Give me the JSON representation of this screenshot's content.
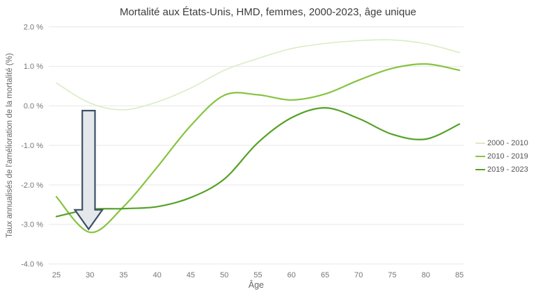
{
  "chart_data": {
    "type": "line",
    "title": "Mortalité aux États-Unis, HMD, femmes, 2000-2023, âge unique",
    "xlabel": "Âge",
    "ylabel": "Taux annualisés de l'amélioration de la mortalité (%)",
    "x": [
      25,
      30,
      35,
      40,
      45,
      50,
      55,
      60,
      65,
      70,
      75,
      80,
      85
    ],
    "x_tick_labels": [
      "25",
      "30",
      "35",
      "40",
      "45",
      "50",
      "55",
      "60",
      "65",
      "70",
      "75",
      "80",
      "85"
    ],
    "xlim": [
      25,
      85
    ],
    "ylim": [
      -4,
      2
    ],
    "y_ticks": [
      2,
      1,
      0,
      -1,
      -2,
      -3,
      -4
    ],
    "y_tick_labels": [
      "2.0 %",
      "1.0 %",
      "0.0 %",
      "-1.0 %",
      "-2.0 %",
      "-3.0 %",
      "-4.0 %"
    ],
    "grid": "horizontal-only",
    "legend_position": "right",
    "background": "#ffffff",
    "series": [
      {
        "name": "2000 - 2010",
        "color": "#d9ecc3",
        "stroke_width": 1.6,
        "values": [
          0.58,
          0.07,
          -0.1,
          0.1,
          0.45,
          0.9,
          1.2,
          1.45,
          1.58,
          1.65,
          1.67,
          1.57,
          1.35
        ]
      },
      {
        "name": "2010 - 2019",
        "color": "#85c440",
        "stroke_width": 2.2,
        "values": [
          -2.3,
          -3.2,
          -2.55,
          -1.55,
          -0.5,
          0.27,
          0.28,
          0.15,
          0.3,
          0.65,
          0.95,
          1.06,
          0.9
        ]
      },
      {
        "name": "2019 - 2023",
        "color": "#55a127",
        "stroke_width": 2.2,
        "values": [
          -2.8,
          -2.62,
          -2.6,
          -2.55,
          -2.32,
          -1.85,
          -0.93,
          -0.3,
          -0.05,
          -0.32,
          -0.72,
          -0.84,
          -0.46
        ]
      }
    ],
    "annotation": {
      "type": "down-arrow",
      "age": 29.8,
      "value_top": -0.12,
      "value_head_base": -2.63,
      "value_tip": -3.12,
      "body_half_width_years": 0.95,
      "head_half_width_years": 2.05,
      "fill": "#e4e8eb",
      "stroke": "#3b5166"
    }
  }
}
